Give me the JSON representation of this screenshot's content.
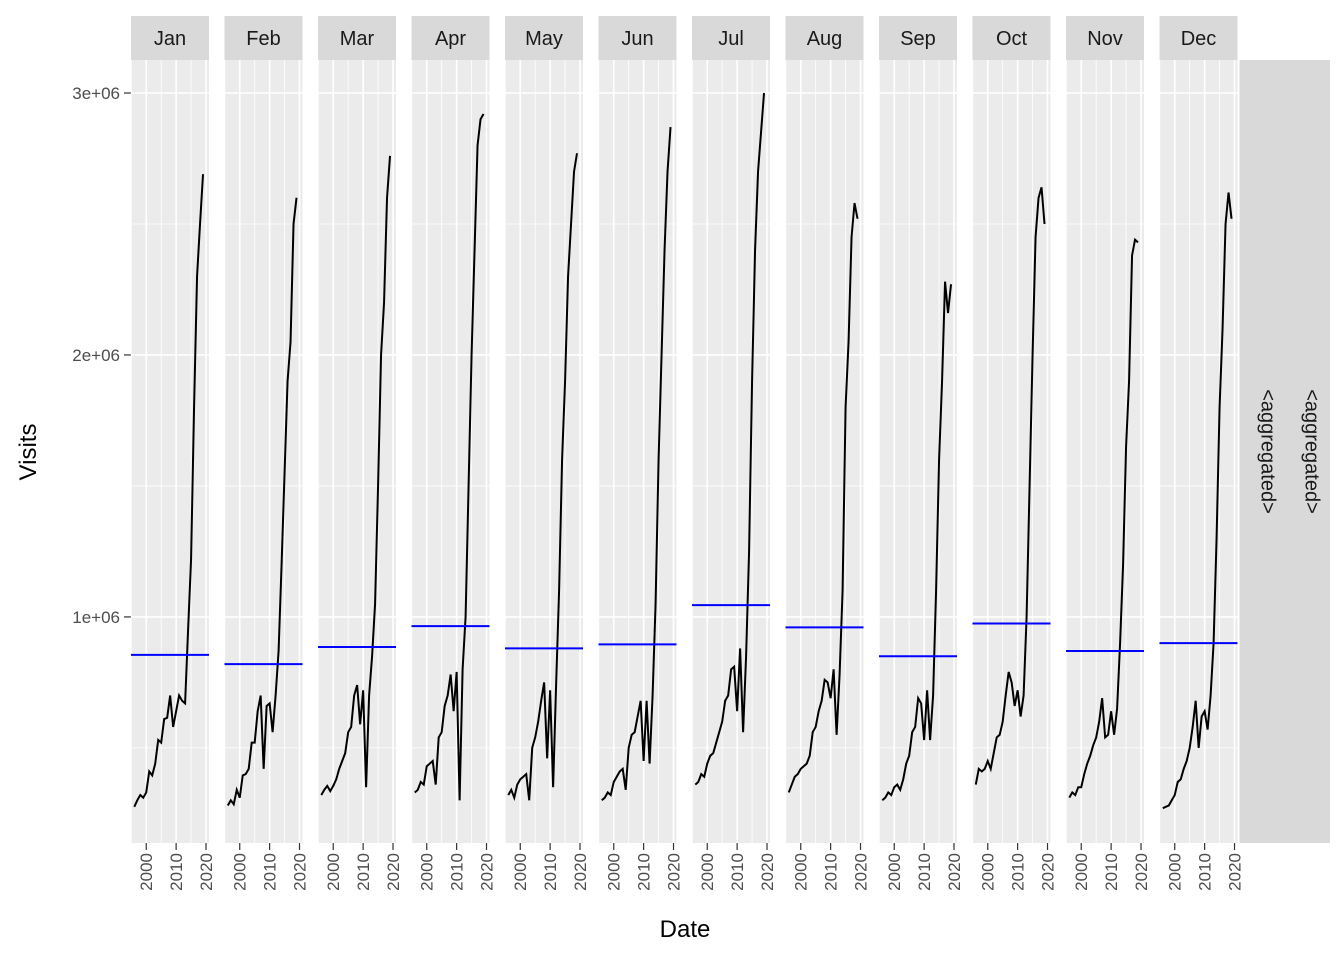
{
  "chart_data": {
    "type": "line",
    "x_label": "Date",
    "y_label": "Visits",
    "x": [
      1996,
      1997,
      1998,
      1999,
      2000,
      2001,
      2002,
      2003,
      2004,
      2005,
      2006,
      2007,
      2008,
      2009,
      2010,
      2011,
      2012,
      2013,
      2014,
      2015,
      2016,
      2017,
      2018,
      2019
    ],
    "xlim": [
      1994.9,
      2021.0
    ],
    "xticks": [
      2000,
      2010,
      2020
    ],
    "ylim": [
      137000,
      3126000
    ],
    "yticks": [
      {
        "value": 1000000,
        "label": "1e+06"
      },
      {
        "value": 2000000,
        "label": "2e+06"
      },
      {
        "value": 3000000,
        "label": "3e+06"
      }
    ],
    "grid": true,
    "line_color": "#000000",
    "mean_color": "#0000ff",
    "row_labels": [
      "<aggregated>",
      "<aggregated>"
    ],
    "series": [
      {
        "name": "Jan",
        "mean": 855000,
        "values": [
          275000,
          300000,
          320000,
          310000,
          330000,
          410000,
          395000,
          440000,
          530000,
          520000,
          610000,
          615000,
          700000,
          580000,
          640000,
          700000,
          680000,
          670000,
          950000,
          1220000,
          1800000,
          2300000,
          2500000,
          2690000
        ]
      },
      {
        "name": "Feb",
        "mean": 820000,
        "values": [
          280000,
          300000,
          285000,
          340000,
          310000,
          395000,
          400000,
          420000,
          520000,
          520000,
          640000,
          700000,
          420000,
          660000,
          670000,
          560000,
          700000,
          870000,
          1200000,
          1550000,
          1900000,
          2050000,
          2500000,
          2600000
        ]
      },
      {
        "name": "Mar",
        "mean": 885000,
        "values": [
          320000,
          340000,
          355000,
          335000,
          355000,
          380000,
          420000,
          450000,
          480000,
          560000,
          580000,
          700000,
          740000,
          590000,
          720000,
          350000,
          700000,
          850000,
          1050000,
          1500000,
          2000000,
          2200000,
          2600000,
          2760000
        ]
      },
      {
        "name": "Apr",
        "mean": 965000,
        "values": [
          330000,
          340000,
          370000,
          360000,
          430000,
          440000,
          450000,
          360000,
          540000,
          560000,
          660000,
          700000,
          780000,
          640000,
          790000,
          300000,
          800000,
          1000000,
          1500000,
          2000000,
          2400000,
          2800000,
          2900000,
          2920000
        ]
      },
      {
        "name": "May",
        "mean": 880000,
        "values": [
          320000,
          340000,
          310000,
          360000,
          380000,
          390000,
          400000,
          300000,
          500000,
          540000,
          600000,
          680000,
          750000,
          460000,
          720000,
          350000,
          740000,
          1100000,
          1600000,
          1900000,
          2300000,
          2500000,
          2700000,
          2770000
        ]
      },
      {
        "name": "Jun",
        "mean": 895000,
        "values": [
          300000,
          310000,
          330000,
          320000,
          370000,
          390000,
          410000,
          420000,
          340000,
          500000,
          550000,
          560000,
          620000,
          680000,
          450000,
          680000,
          440000,
          700000,
          1050000,
          1600000,
          2000000,
          2400000,
          2700000,
          2870000
        ]
      },
      {
        "name": "Jul",
        "mean": 1045000,
        "values": [
          360000,
          370000,
          400000,
          390000,
          440000,
          470000,
          480000,
          520000,
          560000,
          600000,
          680000,
          700000,
          800000,
          810000,
          640000,
          880000,
          560000,
          850000,
          1250000,
          1900000,
          2400000,
          2700000,
          2850000,
          3000000
        ]
      },
      {
        "name": "Aug",
        "mean": 960000,
        "values": [
          330000,
          360000,
          390000,
          400000,
          420000,
          430000,
          440000,
          470000,
          560000,
          580000,
          640000,
          680000,
          760000,
          750000,
          690000,
          800000,
          550000,
          780000,
          1100000,
          1800000,
          2050000,
          2450000,
          2580000,
          2520000
        ]
      },
      {
        "name": "Sep",
        "mean": 850000,
        "values": [
          300000,
          310000,
          330000,
          320000,
          350000,
          360000,
          340000,
          380000,
          440000,
          470000,
          560000,
          580000,
          690000,
          670000,
          530000,
          720000,
          530000,
          700000,
          1100000,
          1600000,
          1900000,
          2280000,
          2160000,
          2270000
        ]
      },
      {
        "name": "Oct",
        "mean": 975000,
        "values": [
          360000,
          420000,
          410000,
          420000,
          450000,
          420000,
          480000,
          540000,
          550000,
          600000,
          700000,
          790000,
          750000,
          660000,
          720000,
          620000,
          700000,
          1000000,
          1500000,
          2000000,
          2450000,
          2600000,
          2640000,
          2500000
        ]
      },
      {
        "name": "Nov",
        "mean": 870000,
        "values": [
          310000,
          330000,
          320000,
          350000,
          350000,
          400000,
          440000,
          470000,
          510000,
          540000,
          600000,
          690000,
          540000,
          550000,
          640000,
          550000,
          650000,
          900000,
          1200000,
          1650000,
          1900000,
          2380000,
          2440000,
          2430000
        ]
      },
      {
        "name": "Dec",
        "mean": 900000,
        "values": [
          270000,
          275000,
          280000,
          300000,
          320000,
          370000,
          380000,
          420000,
          450000,
          500000,
          580000,
          680000,
          500000,
          620000,
          640000,
          570000,
          700000,
          900000,
          1300000,
          1800000,
          2100000,
          2500000,
          2620000,
          2520000
        ]
      }
    ]
  }
}
